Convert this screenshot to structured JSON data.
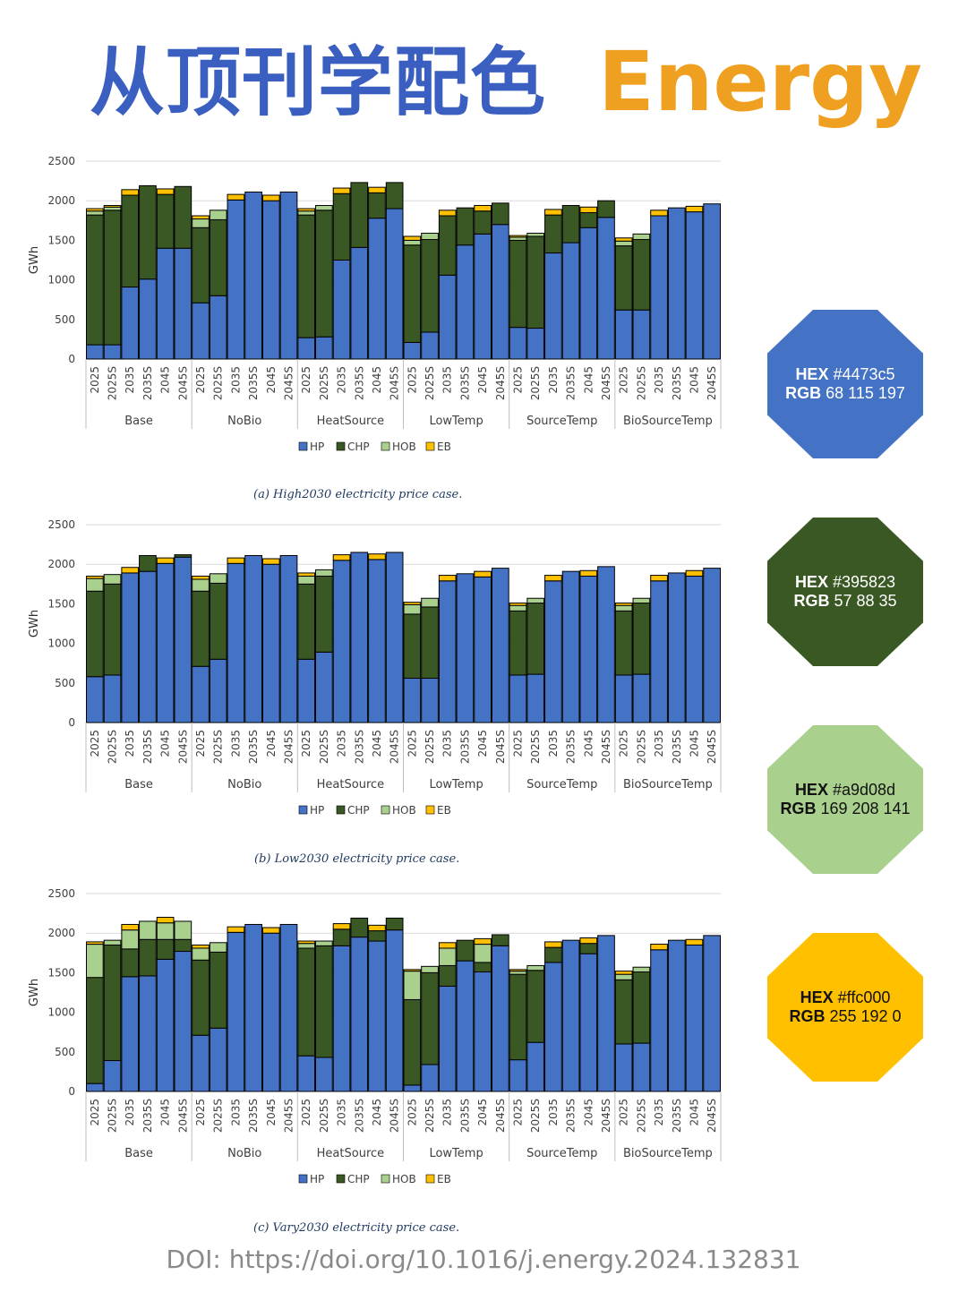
{
  "header": {
    "title_cn": "从顶刊学配色",
    "title_en": "Energy"
  },
  "doi": "DOI: https://doi.org/10.1016/j.energy.2024.132831",
  "swatches": [
    {
      "hex_label": "HEX",
      "hex_value": "#4473c5",
      "rgb_label": "RGB",
      "rgb_value": "68 115 197",
      "color": "#4473c5",
      "text_color": "#ffffff"
    },
    {
      "hex_label": "HEX",
      "hex_value": "#395823",
      "rgb_label": "RGB",
      "rgb_value": "57 88 35",
      "color": "#395823",
      "text_color": "#ffffff"
    },
    {
      "hex_label": "HEX",
      "hex_value": "#a9d08d",
      "rgb_label": "RGB",
      "rgb_value": "169 208 141",
      "color": "#a9d08d",
      "text_color": "#111111"
    },
    {
      "hex_label": "HEX",
      "hex_value": "#ffc000",
      "rgb_label": "RGB",
      "rgb_value": "255 192 0",
      "color": "#ffc000",
      "text_color": "#111111"
    }
  ],
  "chart_data": [
    {
      "type": "bar",
      "stacked": true,
      "caption": "(a) High2030 electricity price case.",
      "ylabel": "GWh",
      "ylim": [
        0,
        2500
      ],
      "yticks": [
        0,
        500,
        1000,
        1500,
        2000,
        2500
      ],
      "grid": true,
      "legend_position": "bottom",
      "groups": [
        "Base",
        "NoBio",
        "HeatSource",
        "LowTemp",
        "SourceTemp",
        "BioSourceTemp"
      ],
      "categories": [
        "2025",
        "2025S",
        "2035",
        "2035S",
        "2045",
        "2045S"
      ],
      "series": [
        {
          "name": "HP",
          "color": "#4473c5",
          "values": [
            [
              180,
              180,
              910,
              1010,
              1400,
              1400
            ],
            [
              710,
              800,
              2010,
              2110,
              2000,
              2110
            ],
            [
              270,
              280,
              1250,
              1410,
              1780,
              1900
            ],
            [
              210,
              340,
              1060,
              1440,
              1580,
              1700
            ],
            [
              400,
              390,
              1340,
              1470,
              1660,
              1790
            ],
            [
              620,
              620,
              1810,
              1910,
              1860,
              1960
            ]
          ]
        },
        {
          "name": "CHP",
          "color": "#395823",
          "values": [
            [
              1640,
              1700,
              1160,
              1180,
              680,
              780
            ],
            [
              950,
              960,
              0,
              0,
              0,
              0
            ],
            [
              1550,
              1600,
              840,
              820,
              320,
              330
            ],
            [
              1230,
              1170,
              750,
              470,
              290,
              270
            ],
            [
              1100,
              1160,
              480,
              470,
              190,
              210
            ],
            [
              810,
              890,
              0,
              0,
              0,
              0
            ]
          ]
        },
        {
          "name": "HOB",
          "color": "#a9d08d",
          "values": [
            [
              50,
              40,
              0,
              0,
              0,
              0
            ],
            [
              110,
              120,
              0,
              0,
              0,
              0
            ],
            [
              50,
              60,
              0,
              0,
              0,
              0
            ],
            [
              60,
              80,
              0,
              0,
              0,
              0
            ],
            [
              40,
              40,
              0,
              0,
              0,
              0
            ],
            [
              60,
              70,
              0,
              0,
              0,
              0
            ]
          ]
        },
        {
          "name": "EB",
          "color": "#ffc000",
          "values": [
            [
              30,
              20,
              70,
              0,
              70,
              0
            ],
            [
              40,
              0,
              70,
              0,
              70,
              0
            ],
            [
              30,
              0,
              70,
              0,
              70,
              0
            ],
            [
              50,
              0,
              70,
              0,
              70,
              0
            ],
            [
              20,
              0,
              70,
              0,
              70,
              0
            ],
            [
              40,
              0,
              70,
              0,
              70,
              0
            ]
          ]
        }
      ]
    },
    {
      "type": "bar",
      "stacked": true,
      "caption": "(b) Low2030 electricity price case.",
      "ylabel": "GWh",
      "ylim": [
        0,
        2500
      ],
      "yticks": [
        0,
        500,
        1000,
        1500,
        2000,
        2500
      ],
      "grid": true,
      "legend_position": "bottom",
      "groups": [
        "Base",
        "NoBio",
        "HeatSource",
        "LowTemp",
        "SourceTemp",
        "BioSourceTemp"
      ],
      "categories": [
        "2025",
        "2025S",
        "2035",
        "2035S",
        "2045",
        "2045S"
      ],
      "series": [
        {
          "name": "HP",
          "color": "#4473c5",
          "values": [
            [
              580,
              600,
              1890,
              1910,
              2010,
              2090
            ],
            [
              710,
              800,
              2010,
              2110,
              2000,
              2110
            ],
            [
              800,
              890,
              2050,
              2150,
              2060,
              2150
            ],
            [
              560,
              560,
              1790,
              1880,
              1840,
              1950
            ],
            [
              600,
              610,
              1790,
              1910,
              1850,
              1970
            ],
            [
              600,
              610,
              1790,
              1890,
              1850,
              1950
            ]
          ]
        },
        {
          "name": "CHP",
          "color": "#395823",
          "values": [
            [
              1080,
              1150,
              0,
              200,
              0,
              30
            ],
            [
              950,
              960,
              0,
              0,
              0,
              0
            ],
            [
              950,
              960,
              0,
              0,
              0,
              0
            ],
            [
              810,
              900,
              0,
              0,
              0,
              0
            ],
            [
              810,
              900,
              0,
              0,
              0,
              0
            ],
            [
              810,
              900,
              0,
              0,
              0,
              0
            ]
          ]
        },
        {
          "name": "HOB",
          "color": "#a9d08d",
          "values": [
            [
              160,
              120,
              0,
              0,
              0,
              0
            ],
            [
              150,
              120,
              0,
              0,
              0,
              0
            ],
            [
              100,
              80,
              0,
              0,
              0,
              0
            ],
            [
              120,
              110,
              0,
              0,
              0,
              0
            ],
            [
              70,
              60,
              0,
              0,
              0,
              0
            ],
            [
              70,
              60,
              0,
              0,
              0,
              0
            ]
          ]
        },
        {
          "name": "EB",
          "color": "#ffc000",
          "values": [
            [
              30,
              0,
              70,
              0,
              70,
              0
            ],
            [
              40,
              0,
              70,
              0,
              70,
              0
            ],
            [
              40,
              0,
              70,
              0,
              70,
              0
            ],
            [
              30,
              0,
              70,
              0,
              70,
              0
            ],
            [
              30,
              0,
              70,
              0,
              70,
              0
            ],
            [
              30,
              0,
              70,
              0,
              70,
              0
            ]
          ]
        }
      ]
    },
    {
      "type": "bar",
      "stacked": true,
      "caption": "(c) Vary2030 electricity price case.",
      "ylabel": "GWh",
      "ylim": [
        0,
        2500
      ],
      "yticks": [
        0,
        500,
        1000,
        1500,
        2000,
        2500
      ],
      "grid": true,
      "legend_position": "bottom",
      "groups": [
        "Base",
        "NoBio",
        "HeatSource",
        "LowTemp",
        "SourceTemp",
        "BioSourceTemp"
      ],
      "categories": [
        "2025",
        "2025S",
        "2035",
        "2035S",
        "2045",
        "2045S"
      ],
      "series": [
        {
          "name": "HP",
          "color": "#4473c5",
          "values": [
            [
              100,
              390,
              1450,
              1460,
              1670,
              1770
            ],
            [
              710,
              800,
              2010,
              2110,
              2000,
              2110
            ],
            [
              450,
              430,
              1840,
              1950,
              1900,
              2040
            ],
            [
              80,
              340,
              1330,
              1650,
              1510,
              1840
            ],
            [
              400,
              620,
              1630,
              1910,
              1740,
              1970
            ],
            [
              600,
              610,
              1790,
              1910,
              1850,
              1970
            ]
          ]
        },
        {
          "name": "CHP",
          "color": "#395823",
          "values": [
            [
              1340,
              1460,
              350,
              460,
              250,
              150
            ],
            [
              950,
              960,
              0,
              0,
              0,
              0
            ],
            [
              1360,
              1410,
              210,
              240,
              130,
              150
            ],
            [
              1080,
              1160,
              260,
              260,
              120,
              140
            ],
            [
              1080,
              910,
              190,
              0,
              130,
              0
            ],
            [
              810,
              900,
              0,
              0,
              0,
              0
            ]
          ]
        },
        {
          "name": "HOB",
          "color": "#a9d08d",
          "values": [
            [
              420,
              60,
              240,
              230,
              210,
              230
            ],
            [
              150,
              120,
              0,
              0,
              0,
              0
            ],
            [
              60,
              60,
              0,
              0,
              0,
              0
            ],
            [
              360,
              80,
              220,
              0,
              230,
              0
            ],
            [
              40,
              60,
              0,
              0,
              0,
              0
            ],
            [
              70,
              60,
              0,
              0,
              0,
              0
            ]
          ]
        },
        {
          "name": "EB",
          "color": "#ffc000",
          "values": [
            [
              30,
              0,
              70,
              0,
              70,
              0
            ],
            [
              40,
              0,
              70,
              0,
              70,
              0
            ],
            [
              30,
              0,
              70,
              0,
              70,
              0
            ],
            [
              20,
              0,
              70,
              0,
              70,
              0
            ],
            [
              20,
              0,
              70,
              0,
              70,
              0
            ],
            [
              40,
              0,
              70,
              0,
              70,
              0
            ]
          ]
        }
      ]
    }
  ]
}
